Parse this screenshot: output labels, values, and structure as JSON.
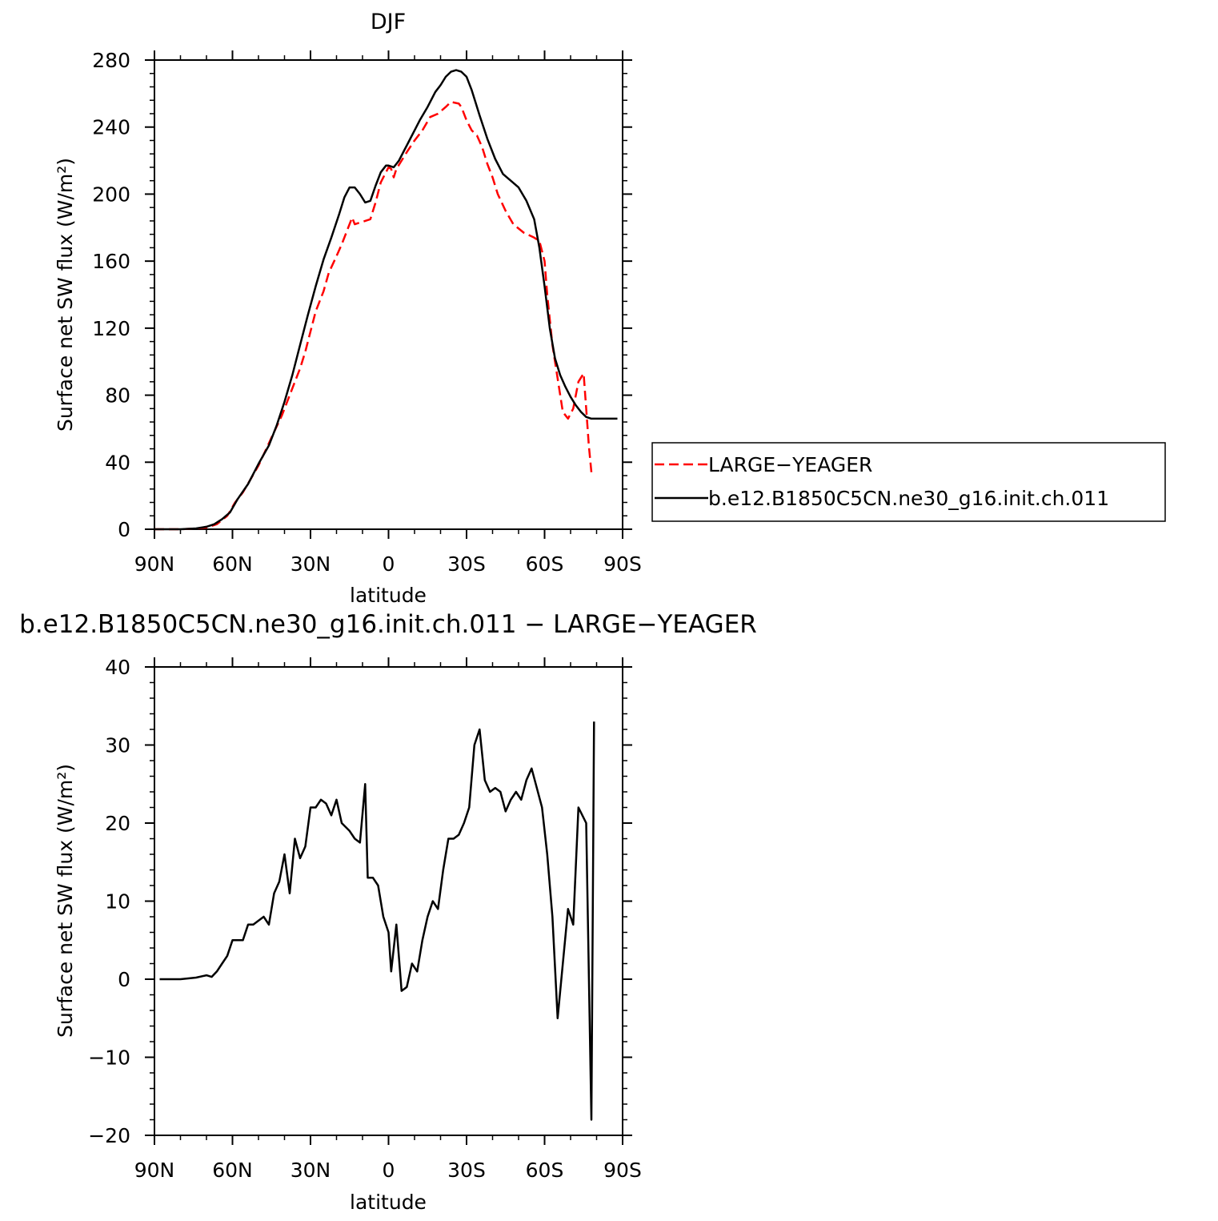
{
  "chart_data": [
    {
      "type": "line",
      "title": "DJF",
      "xlabel": "latitude",
      "ylabel": "Surface net SW flux (W/m²)",
      "xlim": [
        90,
        -90
      ],
      "ylim": [
        0,
        280
      ],
      "xticks": [
        90,
        60,
        30,
        0,
        -30,
        -60,
        -90
      ],
      "xtick_labels": [
        "90N",
        "60N",
        "30N",
        "0",
        "30S",
        "60S",
        "90S"
      ],
      "yticks": [
        0,
        40,
        80,
        120,
        160,
        200,
        240,
        280
      ],
      "ytick_labels": [
        "0",
        "40",
        "80",
        "120",
        "160",
        "200",
        "240",
        "280"
      ],
      "legend": "right, outside plot",
      "series": [
        {
          "name": "LARGE−YEAGER",
          "color": "#ff0000",
          "dash": "dashed",
          "x": [
            90,
            80,
            74,
            70,
            66,
            62,
            59,
            56,
            53,
            50,
            47,
            44,
            41,
            38,
            36,
            34,
            32,
            30,
            28,
            25,
            23,
            20,
            18,
            16,
            14,
            13,
            11,
            9,
            7,
            5,
            3,
            1,
            0,
            -1,
            -2,
            -3,
            -5,
            -7,
            -10,
            -13,
            -16,
            -19,
            -22,
            -24,
            -27,
            -28,
            -30,
            -32,
            -34,
            -36,
            -38,
            -40,
            -42,
            -45,
            -48,
            -52,
            -56,
            -58,
            -60,
            -61,
            -63,
            -65,
            -67,
            -69,
            -71,
            -73,
            -75,
            -76,
            -77,
            -78
          ],
          "y": [
            0,
            0,
            0.5,
            1,
            3,
            8,
            16,
            22,
            30,
            38,
            48,
            58,
            68,
            80,
            88,
            96,
            106,
            118,
            130,
            142,
            153,
            163,
            170,
            178,
            186,
            182,
            183,
            184,
            185,
            195,
            207,
            213,
            216,
            215,
            210,
            215,
            220,
            225,
            232,
            238,
            246,
            248,
            252,
            255,
            254,
            252,
            244,
            238,
            235,
            228,
            218,
            210,
            200,
            190,
            182,
            177,
            174,
            172,
            160,
            140,
            110,
            90,
            70,
            66,
            72,
            88,
            93,
            72,
            50,
            34
          ]
        },
        {
          "name": "b.e12.B1850C5CN.ne30_g16.init.ch.011",
          "color": "#000000",
          "dash": "solid",
          "x": [
            90,
            80,
            74,
            70,
            67,
            64,
            61,
            58,
            54,
            50,
            46,
            43,
            40,
            37,
            34,
            31,
            28,
            25,
            22,
            19,
            17,
            15,
            13,
            11,
            9,
            7,
            5,
            3,
            1,
            0,
            -2,
            -4,
            -6,
            -8,
            -10,
            -12,
            -15,
            -18,
            -20,
            -22,
            -24,
            -26,
            -28,
            -30,
            -32,
            -35,
            -38,
            -41,
            -44,
            -47,
            -50,
            -53,
            -56,
            -58,
            -60,
            -62,
            -64,
            -66,
            -68,
            -70,
            -72,
            -74,
            -76,
            -78,
            -80,
            -84,
            -88
          ],
          "y": [
            0,
            0,
            0.5,
            1.5,
            3,
            6,
            10,
            18,
            27,
            39,
            50,
            62,
            76,
            92,
            110,
            128,
            145,
            161,
            174,
            188,
            198,
            204,
            204,
            200,
            195,
            196,
            205,
            213,
            217,
            217,
            216,
            220,
            226,
            232,
            238,
            244,
            252,
            261,
            265,
            270,
            273,
            274,
            273,
            270,
            262,
            247,
            233,
            221,
            212,
            208,
            204,
            196,
            185,
            168,
            145,
            120,
            102,
            92,
            85,
            79,
            74,
            70,
            67,
            66,
            66,
            66,
            66
          ]
        }
      ]
    },
    {
      "type": "line",
      "title": "b.e12.B1850C5CN.ne30_g16.init.ch.011 − LARGE−YEAGER",
      "xlabel": "latitude",
      "ylabel": "Surface net SW flux (W/m²)",
      "xlim": [
        90,
        -90
      ],
      "ylim": [
        -20,
        40
      ],
      "xticks": [
        90,
        60,
        30,
        0,
        -30,
        -60,
        -90
      ],
      "xtick_labels": [
        "90N",
        "60N",
        "30N",
        "0",
        "30S",
        "60S",
        "90S"
      ],
      "yticks": [
        -20,
        -10,
        0,
        10,
        20,
        30,
        40
      ],
      "ytick_labels": [
        "−20",
        "−10",
        "0",
        "10",
        "20",
        "30",
        "40"
      ],
      "series": [
        {
          "color": "#000000",
          "dash": "solid",
          "x": [
            88,
            80,
            74,
            70,
            68,
            66,
            64,
            62,
            60,
            58,
            56,
            54,
            52,
            50,
            48,
            46,
            44,
            42,
            40,
            38,
            36,
            34,
            32,
            30,
            28,
            26,
            24,
            22,
            20,
            18,
            15,
            13,
            11,
            9,
            8,
            6,
            4,
            2,
            0,
            -1,
            -3,
            -5,
            -7,
            -9,
            -11,
            -13,
            -15,
            -17,
            -19,
            -21,
            -23,
            -25,
            -27,
            -29,
            -31,
            -33,
            -35,
            -37,
            -39,
            -41,
            -43,
            -45,
            -47,
            -49,
            -51,
            -53,
            -55,
            -57,
            -59,
            -61,
            -63,
            -65,
            -67,
            -69,
            -71,
            -73,
            -76,
            -78,
            -79
          ],
          "y": [
            0,
            0,
            0.2,
            0.5,
            0.3,
            1,
            2,
            3,
            5,
            5,
            5,
            7,
            7,
            7.5,
            8,
            7,
            11,
            12.5,
            16,
            11,
            18,
            15.5,
            17,
            22,
            22,
            23,
            22.5,
            21,
            23,
            20,
            19,
            18,
            17.5,
            25,
            13,
            13,
            12,
            8,
            6,
            1,
            7,
            -1.5,
            -1,
            2,
            1,
            5,
            8,
            10,
            9,
            14,
            18,
            18,
            18.5,
            20,
            22,
            30,
            32,
            25.5,
            24,
            24.5,
            24,
            21.5,
            23,
            24,
            23,
            25.5,
            27,
            24.5,
            22,
            16,
            8,
            -5,
            2,
            9,
            7,
            22,
            20,
            -18,
            33
          ]
        }
      ]
    }
  ]
}
